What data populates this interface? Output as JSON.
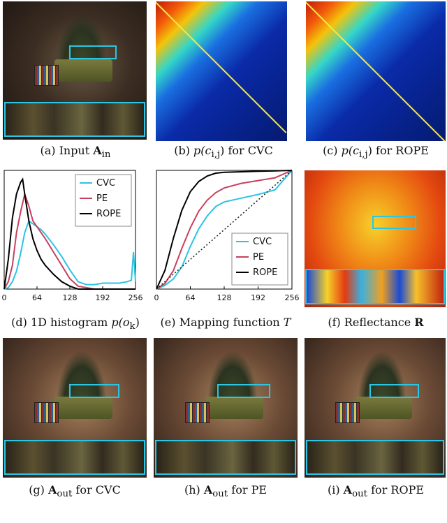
{
  "captions": {
    "a": "(a) Input A_in",
    "b": "(b) p(c_{i,j}) for CVC",
    "c": "(c) p(c_{i,j}) for ROPE",
    "d": "(d) 1D histogram p(o_k)",
    "e": "(e) Mapping function T",
    "f": "(f) Reflectance R",
    "g": "(g) A_out for CVC",
    "h": "(h) A_out for PE",
    "i": "(i) A_out for ROPE"
  },
  "caption_parts": {
    "a": [
      "(a) Input ",
      "A",
      "in",
      ""
    ],
    "b": [
      "(b) ",
      "p(c",
      "i,j",
      ") for CVC"
    ],
    "c": [
      "(c) ",
      "p(c",
      "i,j",
      ") for ROPE"
    ],
    "d": [
      "(d) 1D histogram ",
      "p(o",
      "k",
      ")"
    ],
    "e": [
      "(e) Mapping function ",
      "T",
      "",
      ""
    ],
    "f": [
      "(f) Reflectance ",
      "R",
      "",
      ""
    ],
    "g": [
      "(g) ",
      "A",
      "out",
      " for CVC"
    ],
    "h": [
      "(h) ",
      "A",
      "out",
      " for PE"
    ],
    "i": [
      "(i) ",
      "A",
      "out",
      " for ROPE"
    ]
  },
  "colors": {
    "cvc": "#2cc3e3",
    "pe": "#c8405e",
    "rope": "#000000",
    "highlight": "#29c6e6"
  },
  "chart_data": [
    {
      "type": "line",
      "id": "histogram",
      "xlim": [
        0,
        256
      ],
      "xticks": [
        "0",
        "64",
        "128",
        "192",
        "256"
      ],
      "legend": "top-right",
      "series": [
        {
          "name": "CVC",
          "x": [
            0,
            8,
            16,
            24,
            32,
            40,
            48,
            56,
            64,
            72,
            80,
            96,
            112,
            128,
            144,
            160,
            176,
            192,
            208,
            224,
            240,
            248,
            252,
            256
          ],
          "y": [
            0.0,
            0.01,
            0.05,
            0.12,
            0.24,
            0.38,
            0.46,
            0.44,
            0.42,
            0.4,
            0.37,
            0.3,
            0.22,
            0.13,
            0.05,
            0.03,
            0.03,
            0.04,
            0.04,
            0.04,
            0.05,
            0.06,
            0.25,
            0.05
          ]
        },
        {
          "name": "PE",
          "x": [
            0,
            8,
            16,
            24,
            32,
            40,
            48,
            56,
            64,
            72,
            80,
            96,
            112,
            128,
            144,
            160,
            176,
            192,
            208,
            224,
            240,
            256
          ],
          "y": [
            0.0,
            0.05,
            0.16,
            0.38,
            0.52,
            0.64,
            0.56,
            0.46,
            0.42,
            0.38,
            0.34,
            0.25,
            0.16,
            0.07,
            0.02,
            0.01,
            0.0,
            0.0,
            0.0,
            0.0,
            0.0,
            0.0
          ]
        },
        {
          "name": "ROPE",
          "x": [
            0,
            8,
            16,
            24,
            32,
            36,
            40,
            48,
            56,
            64,
            72,
            80,
            96,
            112,
            128,
            144,
            160,
            192,
            256
          ],
          "y": [
            0.0,
            0.2,
            0.48,
            0.64,
            0.72,
            0.74,
            0.64,
            0.46,
            0.34,
            0.26,
            0.2,
            0.16,
            0.1,
            0.05,
            0.02,
            0.0,
            0.0,
            0.0,
            0.0
          ]
        }
      ]
    },
    {
      "type": "line",
      "id": "mapping",
      "xlim": [
        0,
        256
      ],
      "ylim": [
        0,
        256
      ],
      "xticks": [
        "0",
        "64",
        "128",
        "192",
        "256"
      ],
      "legend": "bottom-right",
      "series": [
        {
          "name": "CVC",
          "x": [
            0,
            16,
            32,
            48,
            64,
            80,
            96,
            112,
            128,
            160,
            192,
            224,
            256
          ],
          "y": [
            0,
            8,
            22,
            48,
            92,
            130,
            158,
            178,
            188,
            196,
            204,
            214,
            256
          ]
        },
        {
          "name": "PE",
          "x": [
            0,
            16,
            32,
            48,
            64,
            80,
            96,
            112,
            128,
            160,
            192,
            224,
            256
          ],
          "y": [
            0,
            12,
            40,
            88,
            132,
            168,
            192,
            208,
            218,
            228,
            234,
            240,
            256
          ]
        },
        {
          "name": "ROPE",
          "x": [
            0,
            16,
            32,
            48,
            64,
            80,
            96,
            112,
            128,
            160,
            192,
            224,
            256
          ],
          "y": [
            0,
            40,
            110,
            170,
            210,
            232,
            244,
            250,
            252,
            253,
            254,
            255,
            256
          ]
        },
        {
          "name": "",
          "x": [
            0,
            256
          ],
          "y": [
            0,
            256
          ]
        }
      ]
    }
  ]
}
